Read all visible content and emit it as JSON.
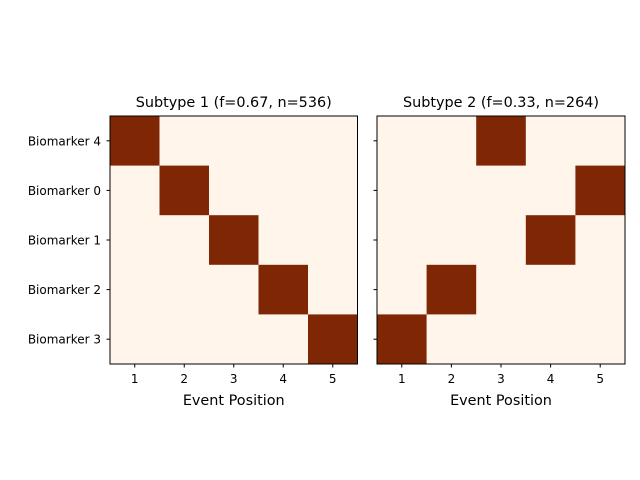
{
  "chart_data": [
    {
      "type": "heatmap",
      "title": "Subtype 1 (f=0.67, n=536)",
      "xlabel": "Event Position",
      "ylabel": "",
      "x_ticks": [
        "1",
        "2",
        "3",
        "4",
        "5"
      ],
      "y_ticks": [
        "Biomarker 4",
        "Biomarker 0",
        "Biomarker 1",
        "Biomarker 2",
        "Biomarker 3"
      ],
      "events": [
        {
          "biomarker": "Biomarker 4",
          "position": 1
        },
        {
          "biomarker": "Biomarker 0",
          "position": 2
        },
        {
          "biomarker": "Biomarker 1",
          "position": 3
        },
        {
          "biomarker": "Biomarker 2",
          "position": 4
        },
        {
          "biomarker": "Biomarker 3",
          "position": 5
        }
      ],
      "show_y_tick_labels": true
    },
    {
      "type": "heatmap",
      "title": "Subtype 2 (f=0.33, n=264)",
      "xlabel": "Event Position",
      "ylabel": "",
      "x_ticks": [
        "1",
        "2",
        "3",
        "4",
        "5"
      ],
      "y_ticks": [
        "Biomarker 4",
        "Biomarker 0",
        "Biomarker 1",
        "Biomarker 2",
        "Biomarker 3"
      ],
      "events": [
        {
          "biomarker": "Biomarker 4",
          "position": 3
        },
        {
          "biomarker": "Biomarker 0",
          "position": 5
        },
        {
          "biomarker": "Biomarker 1",
          "position": 4
        },
        {
          "biomarker": "Biomarker 2",
          "position": 2
        },
        {
          "biomarker": "Biomarker 3",
          "position": 1
        }
      ],
      "show_y_tick_labels": false
    }
  ],
  "colors": {
    "background_cell": "#fff5eb",
    "event_cell": "#7f2704",
    "axis": "#000000"
  }
}
